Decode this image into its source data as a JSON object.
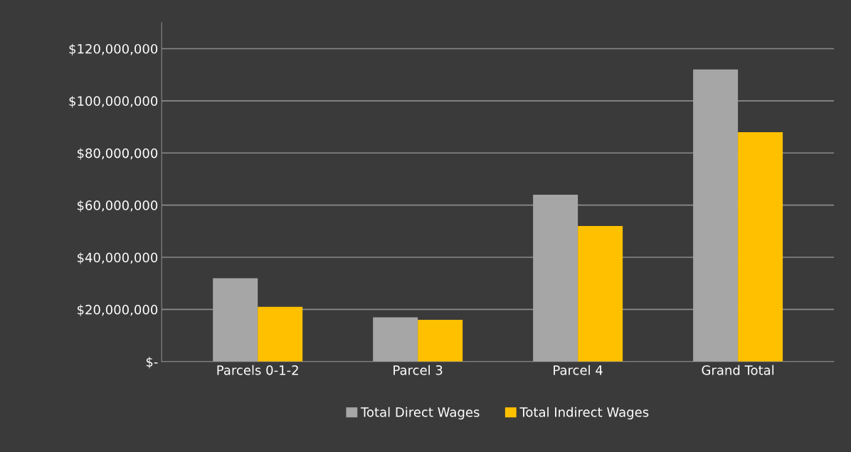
{
  "chart_data": {
    "type": "bar",
    "categories": [
      "Parcels 0-1-2",
      "Parcel 3",
      "Parcel 4",
      "Grand Total"
    ],
    "series": [
      {
        "name": "Total Direct Wages",
        "color": "#a6a6a6",
        "values": [
          32000000,
          17000000,
          64000000,
          112000000
        ]
      },
      {
        "name": "Total Indirect Wages",
        "color": "#ffc000",
        "values": [
          21000000,
          16000000,
          52000000,
          88000000
        ]
      }
    ],
    "ylim": [
      0,
      130000000
    ],
    "yticks": [
      {
        "value": 0,
        "label": "$-"
      },
      {
        "value": 20000000,
        "label": "$20,000,000"
      },
      {
        "value": 40000000,
        "label": "$40,000,000"
      },
      {
        "value": 60000000,
        "label": "$60,000,000"
      },
      {
        "value": 80000000,
        "label": "$80,000,000"
      },
      {
        "value": 100000000,
        "label": "$100,000,000"
      },
      {
        "value": 120000000,
        "label": "$120,000,000"
      }
    ],
    "grid": "y",
    "legend": "bottom"
  }
}
